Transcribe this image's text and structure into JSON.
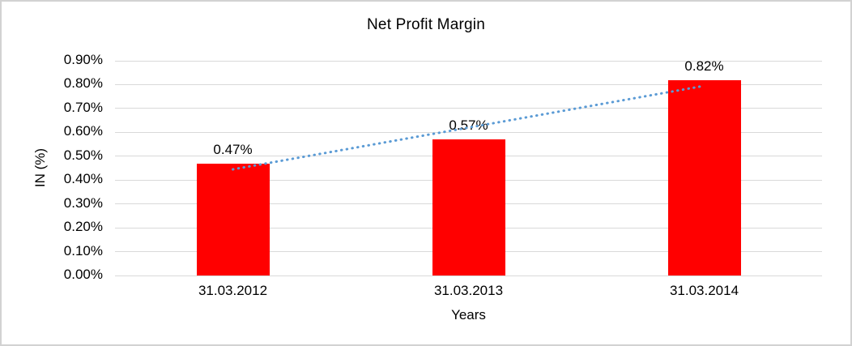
{
  "window": {
    "background_color": "#FFFFFF",
    "border_color": "#D2D2D2"
  },
  "chart_data": {
    "type": "bar",
    "title": "Net Profit Margin",
    "xlabel": "Years",
    "ylabel": "IN (%)",
    "categories": [
      "31.03.2012",
      "31.03.2013",
      "31.03.2014"
    ],
    "values": [
      0.47,
      0.57,
      0.82
    ],
    "data_labels": [
      "0.47%",
      "0.57%",
      "0.82%"
    ],
    "y_ticks": [
      "0.00%",
      "0.10%",
      "0.20%",
      "0.30%",
      "0.40%",
      "0.50%",
      "0.60%",
      "0.70%",
      "0.80%",
      "0.90%"
    ],
    "ylim": [
      0,
      0.9
    ],
    "grid": true,
    "legend_position": "none",
    "bar_color": "#FF0000",
    "gridline_color": "#D9D9D9",
    "text_color": "#000000",
    "trendline": {
      "type": "linear",
      "style": "dotted",
      "color": "#5B9BD5",
      "start_value": 0.445,
      "end_value": 0.795
    }
  }
}
